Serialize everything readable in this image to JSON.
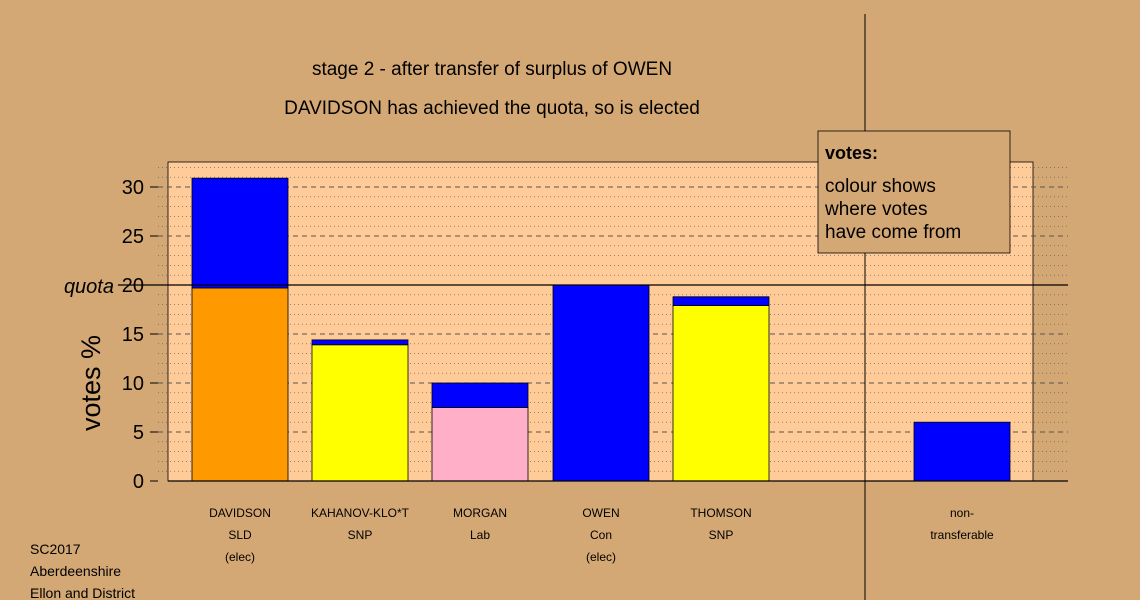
{
  "title": "stage 2 - after transfer of surplus of OWEN",
  "subtitle": "DAVIDSON has achieved the quota, so is elected",
  "footer": [
    "SC2017",
    "Aberdeenshire",
    "Ellon and District"
  ],
  "legend": {
    "title": "votes:",
    "lines": [
      "colour shows",
      "where votes",
      "have come from"
    ]
  },
  "colors": {
    "background": "#D4A874",
    "plot_bg": "#FFCC99",
    "orange": "#FF9900",
    "blue": "#0000FF",
    "yellow": "#FFFF00",
    "pink": "#FFB0C8"
  },
  "chart_data": {
    "type": "bar",
    "stacked": true,
    "ylabel": "votes %",
    "ylim": [
      0,
      32.5
    ],
    "yticks": [
      0,
      5,
      10,
      15,
      20,
      25,
      30
    ],
    "quota": 20,
    "quota_label": "quota",
    "grid": true,
    "legend_position": "top-right",
    "bars": [
      {
        "label": [
          "DAVIDSON",
          "SLD",
          "(elec)"
        ],
        "segments": [
          {
            "value": 19.7,
            "color": "#FF9900"
          },
          {
            "value": 11.2,
            "color": "#0000FF"
          }
        ]
      },
      {
        "label": [
          "KAHANOV-KLO*T",
          "SNP"
        ],
        "segments": [
          {
            "value": 13.9,
            "color": "#FFFF00"
          },
          {
            "value": 0.5,
            "color": "#0000FF"
          }
        ]
      },
      {
        "label": [
          "MORGAN",
          "Lab"
        ],
        "segments": [
          {
            "value": 7.5,
            "color": "#FFB0C8"
          },
          {
            "value": 2.5,
            "color": "#0000FF"
          }
        ]
      },
      {
        "label": [
          "OWEN",
          "Con",
          "(elec)"
        ],
        "segments": [
          {
            "value": 20.0,
            "color": "#0000FF"
          }
        ]
      },
      {
        "label": [
          "THOMSON",
          "SNP"
        ],
        "segments": [
          {
            "value": 17.9,
            "color": "#FFFF00"
          },
          {
            "value": 0.9,
            "color": "#0000FF"
          }
        ]
      },
      {
        "label": [
          "non-",
          "transferable"
        ],
        "segments": [
          {
            "value": 6.0,
            "color": "#0000FF"
          }
        ]
      }
    ]
  }
}
